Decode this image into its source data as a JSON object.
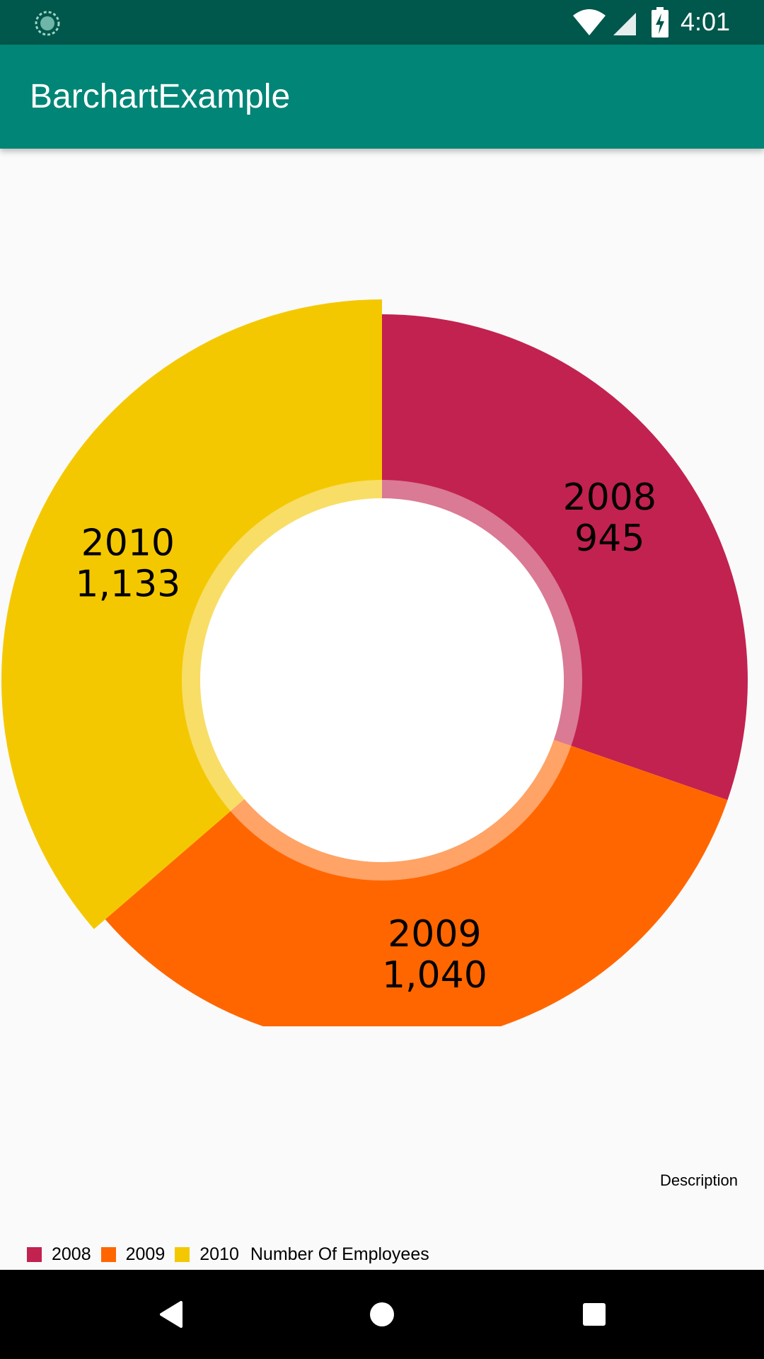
{
  "status_bar": {
    "time": "4:01",
    "icons": [
      "loading-icon",
      "wifi-icon",
      "signal-icon",
      "battery-charging-icon"
    ]
  },
  "app_bar": {
    "title": "BarchartExample"
  },
  "chart_data": {
    "type": "pie",
    "variant": "donut",
    "categories": [
      "2008",
      "2009",
      "2010"
    ],
    "values": [
      945,
      1040,
      1133
    ],
    "value_labels": [
      "945",
      "1,040",
      "1,133"
    ],
    "colors": [
      "#c2224f",
      "#ff6600",
      "#f4c800"
    ],
    "series_name": "Number Of Employees",
    "description": "Description",
    "legend_position": "bottom-left",
    "selected_slice": "2010"
  },
  "nav_bar": {
    "buttons": [
      "back-icon",
      "home-icon",
      "recents-icon"
    ]
  }
}
